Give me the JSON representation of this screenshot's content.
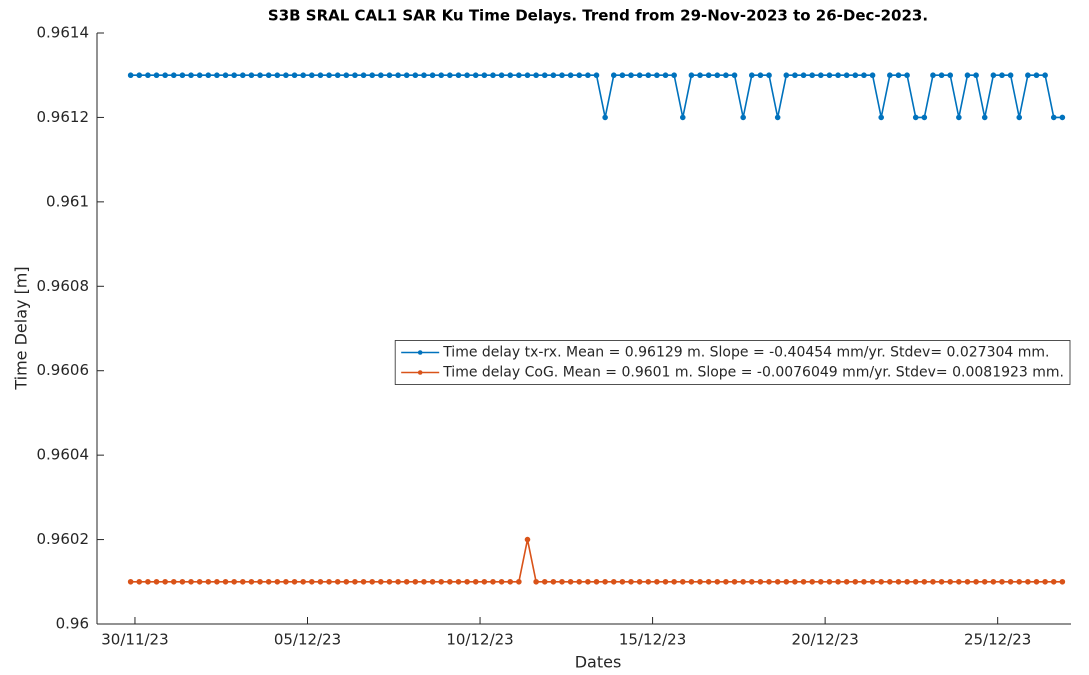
{
  "chart_data": {
    "type": "line",
    "title": "S3B SRAL CAL1 SAR Ku Time Delays. Trend from 29-Nov-2023 to 26-Dec-2023.",
    "x_label": "Dates",
    "y_label": "Time Delay [m]",
    "x": [
      "2023-11-29T21:00",
      "2023-11-30T03:00",
      "2023-11-30T09:00",
      "2023-11-30T15:00",
      "2023-11-30T21:00",
      "2023-12-01T03:00",
      "2023-12-01T09:00",
      "2023-12-01T15:00",
      "2023-12-01T21:00",
      "2023-12-02T03:00",
      "2023-12-02T09:00",
      "2023-12-02T15:00",
      "2023-12-02T21:00",
      "2023-12-03T03:00",
      "2023-12-03T09:00",
      "2023-12-03T15:00",
      "2023-12-03T21:00",
      "2023-12-04T03:00",
      "2023-12-04T09:00",
      "2023-12-04T15:00",
      "2023-12-04T21:00",
      "2023-12-05T03:00",
      "2023-12-05T09:00",
      "2023-12-05T15:00",
      "2023-12-05T21:00",
      "2023-12-06T03:00",
      "2023-12-06T09:00",
      "2023-12-06T15:00",
      "2023-12-06T21:00",
      "2023-12-07T03:00",
      "2023-12-07T09:00",
      "2023-12-07T15:00",
      "2023-12-07T21:00",
      "2023-12-08T03:00",
      "2023-12-08T09:00",
      "2023-12-08T15:00",
      "2023-12-08T21:00",
      "2023-12-09T03:00",
      "2023-12-09T09:00",
      "2023-12-09T15:00",
      "2023-12-09T21:00",
      "2023-12-10T03:00",
      "2023-12-10T09:00",
      "2023-12-10T15:00",
      "2023-12-10T21:00",
      "2023-12-11T03:00",
      "2023-12-11T09:00",
      "2023-12-11T15:00",
      "2023-12-11T21:00",
      "2023-12-12T03:00",
      "2023-12-12T09:00",
      "2023-12-12T15:00",
      "2023-12-12T21:00",
      "2023-12-13T03:00",
      "2023-12-13T09:00",
      "2023-12-13T15:00",
      "2023-12-13T21:00",
      "2023-12-14T03:00",
      "2023-12-14T09:00",
      "2023-12-14T15:00",
      "2023-12-14T21:00",
      "2023-12-15T03:00",
      "2023-12-15T09:00",
      "2023-12-15T15:00",
      "2023-12-15T21:00",
      "2023-12-16T03:00",
      "2023-12-16T09:00",
      "2023-12-16T15:00",
      "2023-12-16T21:00",
      "2023-12-17T03:00",
      "2023-12-17T09:00",
      "2023-12-17T15:00",
      "2023-12-17T21:00",
      "2023-12-18T03:00",
      "2023-12-18T09:00",
      "2023-12-18T15:00",
      "2023-12-18T21:00",
      "2023-12-19T03:00",
      "2023-12-19T09:00",
      "2023-12-19T15:00",
      "2023-12-19T21:00",
      "2023-12-20T03:00",
      "2023-12-20T09:00",
      "2023-12-20T15:00",
      "2023-12-20T21:00",
      "2023-12-21T03:00",
      "2023-12-21T09:00",
      "2023-12-21T15:00",
      "2023-12-21T21:00",
      "2023-12-22T03:00",
      "2023-12-22T09:00",
      "2023-12-22T15:00",
      "2023-12-22T21:00",
      "2023-12-23T03:00",
      "2023-12-23T09:00",
      "2023-12-23T15:00",
      "2023-12-23T21:00",
      "2023-12-24T03:00",
      "2023-12-24T09:00",
      "2023-12-24T15:00",
      "2023-12-24T21:00",
      "2023-12-25T03:00",
      "2023-12-25T09:00",
      "2023-12-25T15:00",
      "2023-12-25T21:00",
      "2023-12-26T03:00",
      "2023-12-26T09:00",
      "2023-12-26T15:00",
      "2023-12-26T21:00"
    ],
    "series": [
      {
        "name": "Time delay tx-rx. Mean = 0.96129 m. Slope = -0.40454 mm/yr. Stdev= 0.027304 mm.",
        "color": "#0072bd",
        "values": [
          0.9613,
          0.9613,
          0.9613,
          0.9613,
          0.9613,
          0.9613,
          0.9613,
          0.9613,
          0.9613,
          0.9613,
          0.9613,
          0.9613,
          0.9613,
          0.9613,
          0.9613,
          0.9613,
          0.9613,
          0.9613,
          0.9613,
          0.9613,
          0.9613,
          0.9613,
          0.9613,
          0.9613,
          0.9613,
          0.9613,
          0.9613,
          0.9613,
          0.9613,
          0.9613,
          0.9613,
          0.9613,
          0.9613,
          0.9613,
          0.9613,
          0.9613,
          0.9613,
          0.9613,
          0.9613,
          0.9613,
          0.9613,
          0.9613,
          0.9613,
          0.9613,
          0.9613,
          0.9613,
          0.9613,
          0.9613,
          0.9613,
          0.9613,
          0.9613,
          0.9613,
          0.9613,
          0.9613,
          0.9613,
          0.9612,
          0.9613,
          0.9613,
          0.9613,
          0.9613,
          0.9613,
          0.9613,
          0.9613,
          0.9613,
          0.9612,
          0.9613,
          0.9613,
          0.9613,
          0.9613,
          0.9613,
          0.9613,
          0.9612,
          0.9613,
          0.9613,
          0.9613,
          0.9612,
          0.9613,
          0.9613,
          0.9613,
          0.9613,
          0.9613,
          0.9613,
          0.9613,
          0.9613,
          0.9613,
          0.9613,
          0.9613,
          0.9612,
          0.9613,
          0.9613,
          0.9613,
          0.9612,
          0.9612,
          0.9613,
          0.9613,
          0.9613,
          0.9612,
          0.9613,
          0.9613,
          0.9612,
          0.9613,
          0.9613,
          0.9613,
          0.9612,
          0.9613,
          0.9613,
          0.9613,
          0.9612,
          0.9612
        ]
      },
      {
        "name": "Time delay CoG. Mean = 0.9601 m. Slope = -0.0076049 mm/yr. Stdev= 0.0081923 mm.",
        "color": "#d95319",
        "values": [
          0.9601,
          0.9601,
          0.9601,
          0.9601,
          0.9601,
          0.9601,
          0.9601,
          0.9601,
          0.9601,
          0.9601,
          0.9601,
          0.9601,
          0.9601,
          0.9601,
          0.9601,
          0.9601,
          0.9601,
          0.9601,
          0.9601,
          0.9601,
          0.9601,
          0.9601,
          0.9601,
          0.9601,
          0.9601,
          0.9601,
          0.9601,
          0.9601,
          0.9601,
          0.9601,
          0.9601,
          0.9601,
          0.9601,
          0.9601,
          0.9601,
          0.9601,
          0.9601,
          0.9601,
          0.9601,
          0.9601,
          0.9601,
          0.9601,
          0.9601,
          0.9601,
          0.9601,
          0.9601,
          0.9602,
          0.9601,
          0.9601,
          0.9601,
          0.9601,
          0.9601,
          0.9601,
          0.9601,
          0.9601,
          0.9601,
          0.9601,
          0.9601,
          0.9601,
          0.9601,
          0.9601,
          0.9601,
          0.9601,
          0.9601,
          0.9601,
          0.9601,
          0.9601,
          0.9601,
          0.9601,
          0.9601,
          0.9601,
          0.9601,
          0.9601,
          0.9601,
          0.9601,
          0.9601,
          0.9601,
          0.9601,
          0.9601,
          0.9601,
          0.9601,
          0.9601,
          0.9601,
          0.9601,
          0.9601,
          0.9601,
          0.9601,
          0.9601,
          0.9601,
          0.9601,
          0.9601,
          0.9601,
          0.9601,
          0.9601,
          0.9601,
          0.9601,
          0.9601,
          0.9601,
          0.9601,
          0.9601,
          0.9601,
          0.9601,
          0.9601,
          0.9601,
          0.9601,
          0.9601,
          0.9601,
          0.9601,
          0.9601
        ]
      }
    ],
    "xlim": [
      "2023-11-28T21:36",
      "2023-12-27T03:00"
    ],
    "xticks": [
      {
        "value": "2023-11-30T00:00",
        "label": "30/11/23"
      },
      {
        "value": "2023-12-05T00:00",
        "label": "05/12/23"
      },
      {
        "value": "2023-12-10T00:00",
        "label": "10/12/23"
      },
      {
        "value": "2023-12-15T00:00",
        "label": "15/12/23"
      },
      {
        "value": "2023-12-20T00:00",
        "label": "20/12/23"
      },
      {
        "value": "2023-12-25T00:00",
        "label": "25/12/23"
      }
    ],
    "ylim": [
      0.96,
      0.9614
    ],
    "yticks": [
      0.96,
      0.9602,
      0.9604,
      0.9606,
      0.9608,
      0.961,
      0.9612,
      0.9614
    ],
    "markers": true,
    "legend": "east"
  }
}
